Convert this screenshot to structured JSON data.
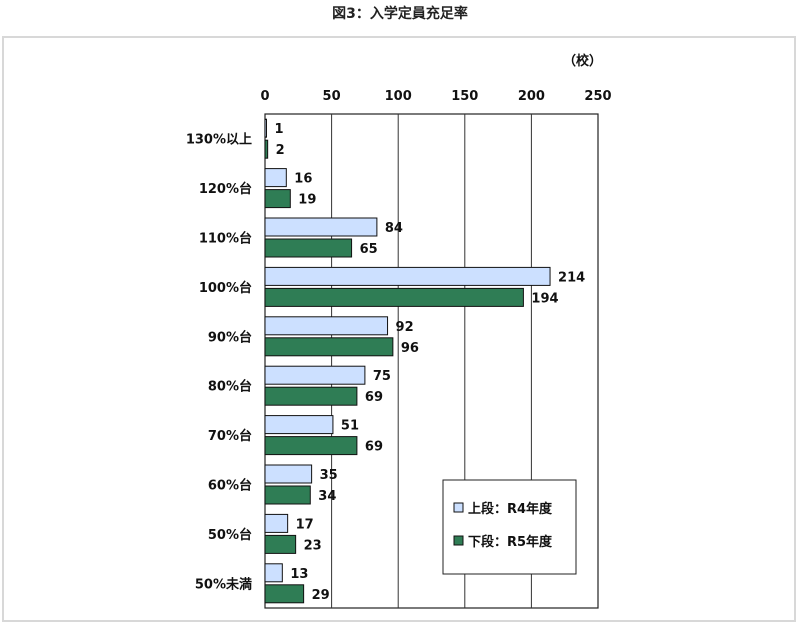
{
  "figure_title": "図3：入学定員充足率",
  "chart_data": {
    "type": "bar",
    "orientation": "horizontal",
    "unit": "（校）",
    "xlim": [
      0,
      250
    ],
    "xticks": [
      0,
      50,
      100,
      150,
      200,
      250
    ],
    "grid": true,
    "legend_position": "bottom-right",
    "categories": [
      "130%以上",
      "120%台",
      "110%台",
      "100%台",
      "90%台",
      "80%台",
      "70%台",
      "60%台",
      "50%台",
      "50%未満"
    ],
    "series": [
      {
        "name": "上段：R4年度",
        "color": "#cce0ff",
        "values": [
          1,
          16,
          84,
          214,
          92,
          75,
          51,
          35,
          17,
          13
        ]
      },
      {
        "name": "下段：R5年度",
        "color": "#2f7d55",
        "values": [
          2,
          19,
          65,
          194,
          96,
          69,
          69,
          34,
          23,
          29
        ]
      }
    ]
  }
}
